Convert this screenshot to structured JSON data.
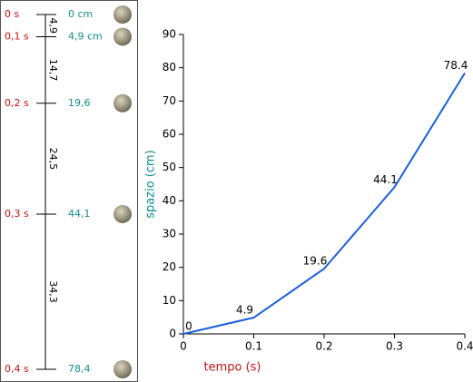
{
  "diagram": {
    "times": [
      "0 s",
      "0,1 s",
      "0,2 s",
      "0,3 s",
      "0,4 s"
    ],
    "distances": [
      "0 cm",
      "4,9 cm",
      "19,6",
      "44,1",
      "78,4"
    ],
    "intervals": [
      "4,9",
      "14,7",
      "24,5",
      "34,3"
    ]
  },
  "chart_data": {
    "type": "line",
    "xlabel": "tempo (s)",
    "ylabel": "spazio (cm)",
    "x": [
      0,
      0.1,
      0.2,
      0.3,
      0.4
    ],
    "values": [
      0,
      4.9,
      19.6,
      44.1,
      78.4
    ],
    "color": "#1a5fe0",
    "xlim": [
      0,
      0.4
    ],
    "ylim": [
      0,
      90
    ],
    "xticks": [
      0,
      0.1,
      0.2,
      0.3,
      0.4
    ],
    "yticks": [
      0,
      10,
      20,
      30,
      40,
      50,
      60,
      70,
      80,
      90
    ],
    "grid": false
  }
}
